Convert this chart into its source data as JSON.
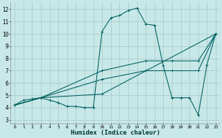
{
  "title": "",
  "xlabel": "Humidex (Indice chaleur)",
  "xlim": [
    -0.5,
    23.5
  ],
  "ylim": [
    2.7,
    12.6
  ],
  "yticks": [
    3,
    4,
    5,
    6,
    7,
    8,
    9,
    10,
    11,
    12
  ],
  "xticks": [
    0,
    1,
    2,
    3,
    4,
    5,
    6,
    7,
    8,
    9,
    10,
    11,
    12,
    13,
    14,
    15,
    16,
    17,
    18,
    19,
    20,
    21,
    22,
    23
  ],
  "bg_color": "#c8e8e8",
  "grid_color": "#aacccc",
  "line_color": "#006060",
  "lines": [
    {
      "x": [
        0,
        1,
        2,
        3,
        4,
        5,
        6,
        7,
        8,
        9,
        10,
        11,
        12,
        13,
        14,
        15,
        16,
        17,
        18,
        19,
        20,
        21,
        22,
        23
      ],
      "y": [
        4.2,
        4.6,
        4.7,
        4.8,
        4.6,
        4.4,
        4.1,
        4.1,
        4.0,
        4.0,
        10.2,
        11.3,
        11.5,
        11.9,
        12.1,
        10.8,
        10.7,
        7.4,
        4.8,
        4.8,
        4.8,
        3.4,
        7.5,
        10.0
      ]
    },
    {
      "x": [
        0,
        3,
        10,
        15,
        18,
        21,
        23
      ],
      "y": [
        4.2,
        4.8,
        7.0,
        7.8,
        7.8,
        7.8,
        10.0
      ]
    },
    {
      "x": [
        0,
        3,
        10,
        15,
        18,
        21,
        23
      ],
      "y": [
        4.2,
        4.8,
        6.3,
        7.0,
        7.0,
        7.0,
        10.0
      ]
    },
    {
      "x": [
        0,
        3,
        10,
        23
      ],
      "y": [
        4.2,
        4.8,
        5.1,
        10.0
      ]
    }
  ]
}
